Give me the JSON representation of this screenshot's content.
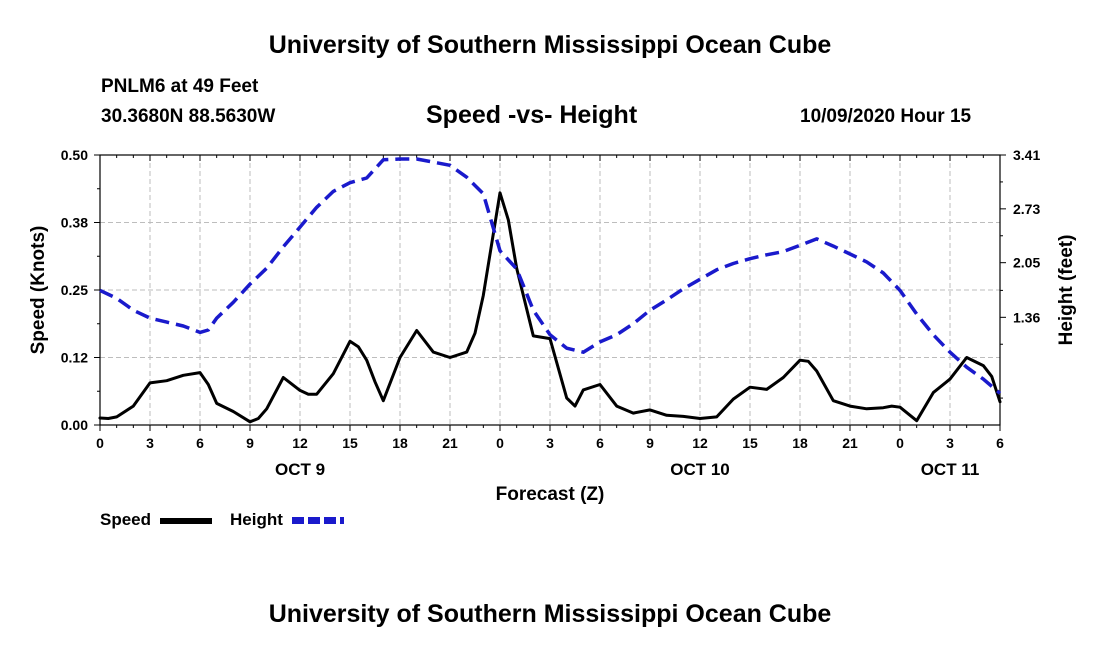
{
  "header": {
    "title": "University of Southern Mississippi Ocean Cube",
    "station": "PNLM6 at 49 Feet",
    "coords": "30.3680N 88.5630W",
    "chart_title": "Speed -vs- Height",
    "datetime": "10/09/2020 Hour 15"
  },
  "footer": {
    "title": "University of Southern Mississippi Ocean Cube"
  },
  "legend": {
    "speed_label": "Speed",
    "height_label": "Height"
  },
  "colors": {
    "speed": "#000000",
    "height": "#1a1acc",
    "grid": "#bdbdbd"
  },
  "chart_data": {
    "type": "line",
    "title": "Speed -vs- Height",
    "xlabel": "Forecast (Z)",
    "ylabel": "Speed (Knots)",
    "y2label": "Height (feet)",
    "xlim": [
      0,
      54
    ],
    "ylim": [
      0,
      0.5
    ],
    "y2lim": [
      0.0,
      3.41
    ],
    "x_ticks": [
      0,
      3,
      6,
      9,
      12,
      15,
      18,
      21,
      24,
      27,
      30,
      33,
      36,
      39,
      42,
      45,
      48,
      51,
      54
    ],
    "x_tick_labels": [
      "0",
      "3",
      "6",
      "9",
      "12",
      "15",
      "18",
      "21",
      "0",
      "3",
      "6",
      "9",
      "12",
      "15",
      "18",
      "21",
      "0",
      "3",
      "6"
    ],
    "y_ticks": [
      0.0,
      0.125,
      0.25,
      0.375,
      0.5
    ],
    "y_tick_labels": [
      "0.00",
      "0.12",
      "0.25",
      "0.38",
      "0.50"
    ],
    "y2_ticks": [
      1.36,
      2.05,
      2.73,
      3.41
    ],
    "y2_tick_labels": [
      "1.36",
      "2.05",
      "2.73",
      "3.41"
    ],
    "date_labels": [
      {
        "label": "OCT 9",
        "x": 12
      },
      {
        "label": "OCT 10",
        "x": 36
      },
      {
        "label": "OCT 11",
        "x": 51
      }
    ],
    "series": [
      {
        "name": "Speed",
        "axis": "left",
        "style": "solid",
        "x": [
          0,
          0.5,
          1,
          2,
          3,
          4,
          5,
          6,
          6.5,
          7,
          8,
          9,
          9.5,
          10,
          11,
          12,
          12.5,
          13,
          14,
          15,
          15.5,
          16,
          16.5,
          17,
          18,
          19,
          20,
          21,
          22,
          22.5,
          23,
          24,
          24.5,
          25,
          26,
          27,
          28,
          28.5,
          29,
          30,
          31,
          32,
          33,
          34,
          35,
          36,
          37,
          38,
          39,
          40,
          41,
          42,
          42.5,
          43,
          44,
          45,
          46,
          47,
          47.5,
          48,
          49,
          50,
          51,
          52,
          53,
          53.5,
          54
        ],
        "values": [
          0.013,
          0.012,
          0.015,
          0.035,
          0.078,
          0.082,
          0.092,
          0.097,
          0.075,
          0.04,
          0.025,
          0.006,
          0.012,
          0.03,
          0.088,
          0.064,
          0.057,
          0.057,
          0.095,
          0.155,
          0.145,
          0.12,
          0.08,
          0.045,
          0.125,
          0.175,
          0.135,
          0.125,
          0.135,
          0.17,
          0.24,
          0.43,
          0.38,
          0.29,
          0.165,
          0.16,
          0.05,
          0.035,
          0.065,
          0.075,
          0.035,
          0.022,
          0.028,
          0.018,
          0.016,
          0.012,
          0.015,
          0.048,
          0.07,
          0.066,
          0.088,
          0.12,
          0.118,
          0.1,
          0.045,
          0.035,
          0.03,
          0.032,
          0.035,
          0.033,
          0.008,
          0.06,
          0.085,
          0.125,
          0.11,
          0.09,
          0.043
        ]
      },
      {
        "name": "Height",
        "axis": "right",
        "style": "dashed",
        "x": [
          0,
          1,
          2,
          3,
          4,
          5,
          6,
          6.5,
          7,
          8,
          9,
          10,
          11,
          12,
          13,
          14,
          15,
          16,
          17,
          18,
          19,
          20,
          21,
          22,
          23,
          24,
          25,
          26,
          27,
          28,
          29,
          30,
          31,
          32,
          33,
          34,
          35,
          36,
          37,
          38,
          39,
          40,
          41,
          42,
          43,
          44,
          45,
          46,
          47,
          48,
          49,
          50,
          51,
          52,
          53,
          54
        ],
        "values": [
          1.7,
          1.6,
          1.45,
          1.35,
          1.3,
          1.25,
          1.17,
          1.2,
          1.35,
          1.55,
          1.78,
          1.98,
          2.25,
          2.5,
          2.75,
          2.95,
          3.06,
          3.12,
          3.35,
          3.36,
          3.36,
          3.32,
          3.28,
          3.13,
          2.92,
          2.2,
          1.97,
          1.45,
          1.14,
          0.97,
          0.92,
          1.05,
          1.14,
          1.28,
          1.45,
          1.58,
          1.72,
          1.84,
          1.96,
          2.04,
          2.1,
          2.15,
          2.19,
          2.27,
          2.35,
          2.26,
          2.16,
          2.06,
          1.92,
          1.7,
          1.4,
          1.14,
          0.92,
          0.73,
          0.58,
          0.4
        ]
      }
    ]
  }
}
